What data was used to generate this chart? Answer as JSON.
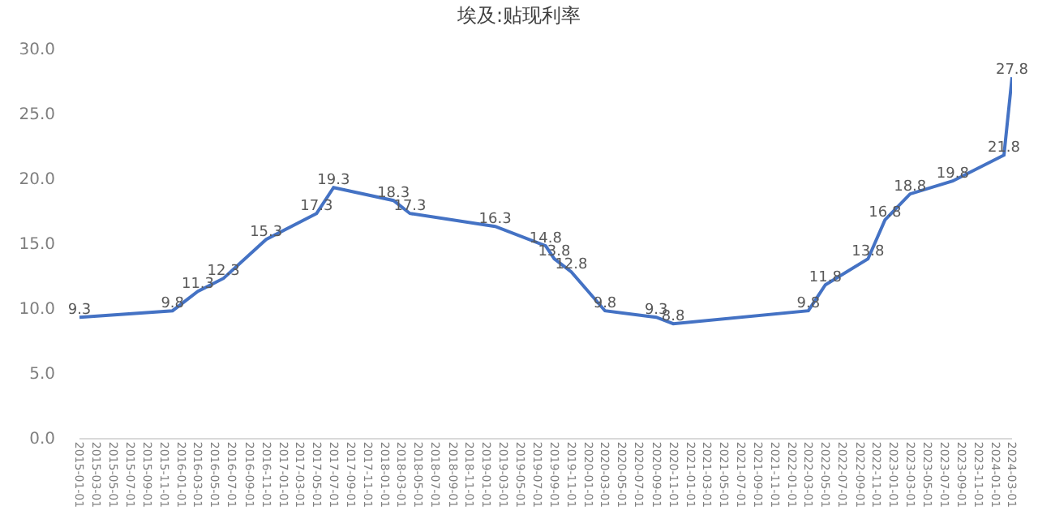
{
  "chart_data": {
    "type": "line",
    "title": "埃及:贴现利率",
    "x": [
      "2015-01-01",
      "2015-12-01",
      "2016-03-01",
      "2016-06-01",
      "2016-11-01",
      "2017-05-01",
      "2017-07-01",
      "2018-02-01",
      "2018-04-01",
      "2019-02-01",
      "2019-08-01",
      "2019-09-01",
      "2019-11-01",
      "2020-03-01",
      "2020-09-01",
      "2020-11-01",
      "2022-03-01",
      "2022-05-01",
      "2022-10-01",
      "2022-12-01",
      "2023-03-01",
      "2023-08-01",
      "2024-02-01",
      "2024-03-01"
    ],
    "series": [
      {
        "color": "#4472c4",
        "values": [
          9.3,
          9.8,
          11.3,
          12.3,
          15.3,
          17.3,
          19.3,
          18.3,
          17.3,
          16.3,
          14.8,
          13.8,
          12.8,
          9.8,
          9.3,
          8.8,
          9.8,
          11.8,
          13.8,
          16.8,
          18.8,
          19.8,
          21.8,
          27.8
        ]
      }
    ],
    "data_labels": true,
    "marker": "none",
    "grid": false,
    "xlim": [
      "2015-01-01",
      "2024-03-01"
    ],
    "xticks": [
      "2015-01-01",
      "2015-03-01",
      "2015-05-01",
      "2015-07-01",
      "2015-09-01",
      "2015-11-01",
      "2016-01-01",
      "2016-03-01",
      "2016-05-01",
      "2016-07-01",
      "2016-09-01",
      "2016-11-01",
      "2017-01-01",
      "2017-03-01",
      "2017-05-01",
      "2017-07-01",
      "2017-09-01",
      "2017-11-01",
      "2018-01-01",
      "2018-03-01",
      "2018-05-01",
      "2018-07-01",
      "2018-09-01",
      "2018-11-01",
      "2019-01-01",
      "2019-03-01",
      "2019-05-01",
      "2019-07-01",
      "2019-09-01",
      "2019-11-01",
      "2020-01-01",
      "2020-03-01",
      "2020-05-01",
      "2020-07-01",
      "2020-09-01",
      "2020-11-01",
      "2021-01-01",
      "2021-03-01",
      "2021-05-01",
      "2021-07-01",
      "2021-09-01",
      "2021-11-01",
      "2022-01-01",
      "2022-03-01",
      "2022-05-01",
      "2022-07-01",
      "2022-09-01",
      "2022-11-01",
      "2023-01-01",
      "2023-03-01",
      "2023-05-01",
      "2023-07-01",
      "2023-09-01",
      "2023-11-01",
      "2024-01-01",
      "2024-03-01"
    ],
    "ylim": [
      0,
      30
    ],
    "yticks": [
      {
        "value": 0,
        "label": "0.0"
      },
      {
        "value": 5,
        "label": "5.0"
      },
      {
        "value": 10,
        "label": "10.0"
      },
      {
        "value": 15,
        "label": "15.0"
      },
      {
        "value": 20,
        "label": "20.0"
      },
      {
        "value": 25,
        "label": "25.0"
      },
      {
        "value": 30,
        "label": "30.0"
      }
    ]
  }
}
